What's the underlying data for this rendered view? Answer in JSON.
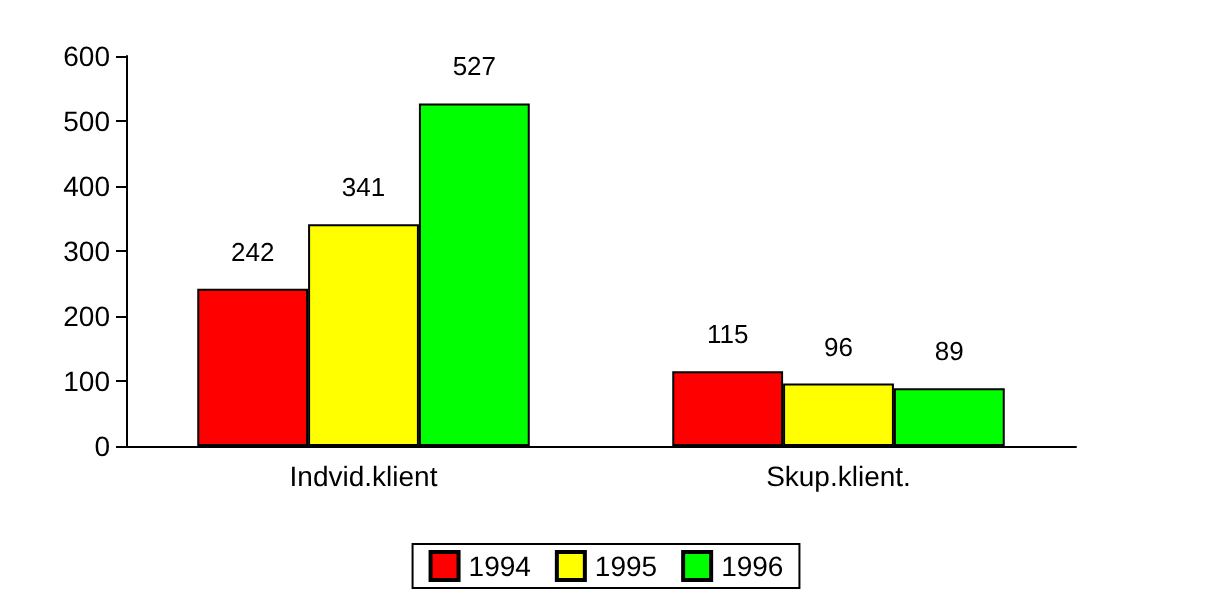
{
  "chart_data": {
    "type": "bar",
    "categories": [
      "Indvid.klient",
      "Skup.klient."
    ],
    "series": [
      {
        "name": "1994",
        "color": "#ff0000",
        "values": [
          242,
          115
        ]
      },
      {
        "name": "1995",
        "color": "#ffff00",
        "values": [
          341,
          96
        ]
      },
      {
        "name": "1996",
        "color": "#00ff00",
        "values": [
          527,
          89
        ]
      }
    ],
    "ylim": [
      0,
      600
    ],
    "yticks": [
      0,
      100,
      200,
      300,
      400,
      500,
      600
    ],
    "grid": false,
    "legend": "bottom",
    "data_labels": true
  }
}
